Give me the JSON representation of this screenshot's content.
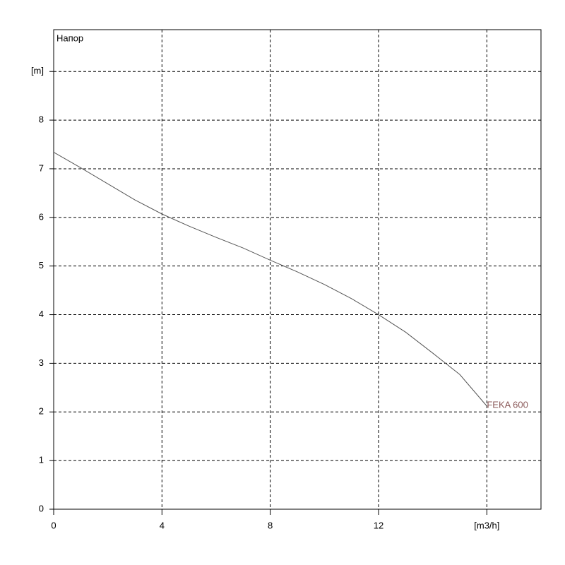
{
  "chart_data": {
    "type": "line",
    "title": "Напор",
    "x": [
      0,
      1,
      2,
      3,
      4,
      5,
      6,
      7,
      8,
      9,
      10,
      11,
      12,
      13,
      14,
      15,
      16
    ],
    "series": [
      {
        "name": "FEKA 600",
        "color": "#555555",
        "label_color": "#8b5a5a",
        "values": [
          7.34,
          7.02,
          6.69,
          6.36,
          6.07,
          5.82,
          5.59,
          5.37,
          5.12,
          4.88,
          4.62,
          4.33,
          4.0,
          3.64,
          3.21,
          2.77,
          2.12
        ]
      }
    ],
    "xlim": [
      0,
      18
    ],
    "ylim": [
      0,
      9.86
    ],
    "xticks": [
      0,
      4,
      8,
      12,
      {
        "value": 16,
        "label": "[m3/h]"
      }
    ],
    "yticks": [
      0,
      1,
      2,
      3,
      4,
      5,
      6,
      7,
      8,
      {
        "value": 9,
        "label": "[m]"
      }
    ],
    "grid": true
  }
}
